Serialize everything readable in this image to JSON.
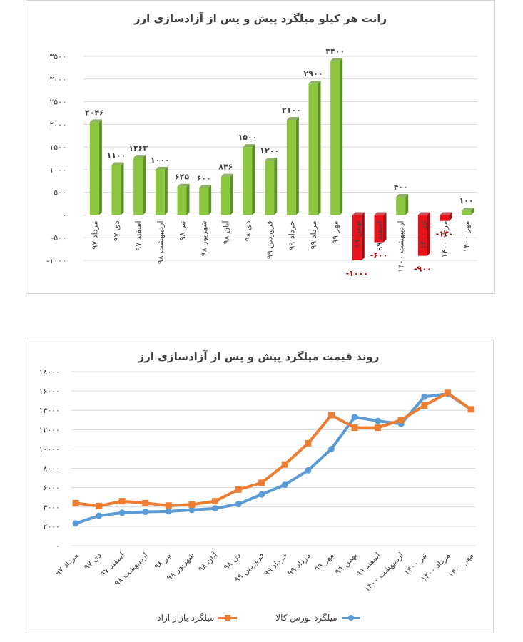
{
  "chart_data": [
    {
      "type": "bar",
      "title": "رانت هر کیلو میلگرد پیش و پس از آزادسازی ارز",
      "categories": [
        "مرداد ۹۷",
        "دی ۹۷",
        "اسفند ۹۷",
        "اردیبهشت ۹۸",
        "تیر ۹۸",
        "شهریور ۹۸",
        "آبان ۹۸",
        "دی ۹۸",
        "فروردین ۹۹",
        "خرداد ۹۹",
        "مرداد ۹۹",
        "مهر ۹۹",
        "بهمن ۹۹",
        "اسفند ۹۹",
        "اردیبهشت ۱۴۰۰",
        "تیر ۱۴۰۰",
        "مرداد ۱۴۰۰",
        "مهر ۱۴۰۰"
      ],
      "values": [
        2046,
        1100,
        1263,
        1000,
        625,
        600,
        846,
        1500,
        1200,
        2100,
        2900,
        3400,
        -1000,
        -600,
        400,
        -900,
        -130,
        100
      ],
      "value_labels": [
        "۲۰۴۶",
        "۱۱۰۰",
        "۱۲۶۳",
        "۱۰۰۰",
        "۶۲۵",
        "۶۰۰",
        "۸۴۶",
        "۱۵۰۰",
        "۱۲۰۰",
        "۲۱۰۰",
        "۲۹۰۰",
        "۳۴۰۰",
        "-۱۰۰۰",
        "-۶۰۰",
        "۴۰۰",
        "-۹۰۰",
        "-۱۳۰",
        "۱۰۰"
      ],
      "ylim": [
        -1000,
        3500
      ],
      "yticks": [
        -1000,
        -500,
        0,
        500,
        1000,
        1500,
        2000,
        2500,
        3000,
        3500
      ],
      "ytick_labels": [
        "-۱۰۰۰",
        "-۵۰۰",
        "۰",
        "۵۰۰",
        "۱۰۰۰",
        "۱۵۰۰",
        "۲۰۰۰",
        "۲۵۰۰",
        "۳۰۰۰",
        "۳۵۰۰"
      ],
      "grid": true,
      "colors": {
        "positive": "#8CC63F",
        "negative": "#E8141B",
        "grid": "#d9d9d9",
        "text": "#404040"
      }
    },
    {
      "type": "line",
      "title": "روند قیمت میلگرد پیش و پس از آزادسازی ارز",
      "categories": [
        "مرداد ۹۷",
        "دی ۹۷",
        "اسفند ۹۷",
        "اردیبهشت ۹۸",
        "تیر ۹۸",
        "شهریور ۹۸",
        "آبان ۹۸",
        "دی ۹۸",
        "فروردین ۹۹",
        "خرداد ۹۹",
        "مرداد ۹۹",
        "مهر ۹۹",
        "بهمن ۹۹",
        "اسفند ۹۹",
        "اردیبهشت ۱۴۰۰",
        "تیر ۱۴۰۰",
        "مرداد ۱۴۰۰",
        "مهر ۱۴۰۰"
      ],
      "series": [
        {
          "name": "میلگرد بورس کالا",
          "color": "#5B9BD5",
          "values": [
            2300,
            3100,
            3400,
            3500,
            3550,
            3700,
            3850,
            4300,
            5300,
            6300,
            7800,
            10000,
            13300,
            12900,
            12600,
            15400,
            15700,
            14100
          ]
        },
        {
          "name": "میلگرد بازار آزاد",
          "color": "#ED7D31",
          "values": [
            4400,
            4100,
            4600,
            4400,
            4150,
            4250,
            4600,
            5800,
            6500,
            8400,
            10600,
            13500,
            12200,
            12200,
            13000,
            14500,
            15800,
            14100
          ]
        }
      ],
      "ylim": [
        0,
        18000
      ],
      "yticks": [
        0,
        2000,
        4000,
        6000,
        8000,
        10000,
        12000,
        14000,
        16000,
        18000
      ],
      "ytick_labels": [
        "۰",
        "۲۰۰۰",
        "۴۰۰۰",
        "۶۰۰۰",
        "۸۰۰۰",
        "۱۰۰۰۰",
        "۱۲۰۰۰",
        "۱۴۰۰۰",
        "۱۶۰۰۰",
        "۱۸۰۰۰"
      ],
      "grid": true,
      "legend": "bottom"
    }
  ]
}
